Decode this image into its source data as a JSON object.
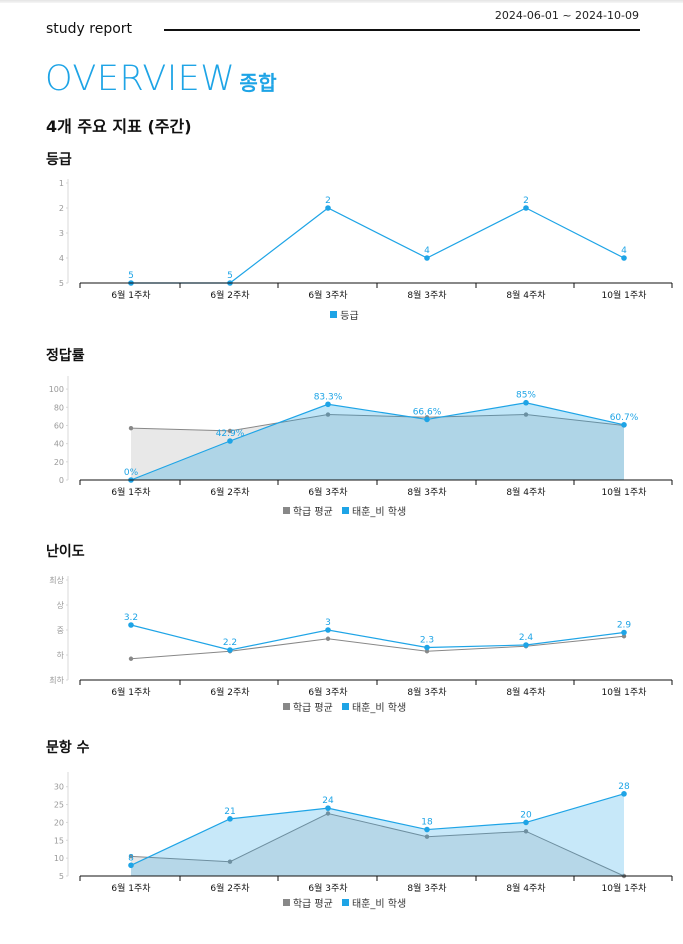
{
  "header": {
    "title": "study report",
    "date_range": "2024-06-01 ~ 2024-10-09"
  },
  "overview": {
    "title": "OVERVIEW",
    "subtitle": "종합"
  },
  "section_title": "4개 주요 지표 (주간)",
  "colors": {
    "accent": "#1ea4e6",
    "average": "#888888"
  },
  "legend_labels": {
    "average": "학급 평균",
    "student": "태훈_비 학생",
    "grade": "등급"
  },
  "chart_data": [
    {
      "title": "등급",
      "type": "line",
      "categories": [
        "6월 1주차",
        "6월 2주차",
        "6월 3주차",
        "8월 3주차",
        "8월 4주차",
        "10월 1주차"
      ],
      "y_ticks": [
        "1",
        "2",
        "3",
        "4",
        "5"
      ],
      "ylim": [
        1,
        5
      ],
      "y_inverted": true,
      "series": [
        {
          "name": "등급",
          "values": [
            5,
            5,
            2,
            4,
            2,
            4
          ],
          "labels": [
            "5",
            "5",
            "2",
            "4",
            "2",
            "4"
          ],
          "color": "#1ea4e6"
        }
      ]
    },
    {
      "title": "정답률",
      "type": "area",
      "categories": [
        "6월 1주차",
        "6월 2주차",
        "6월 3주차",
        "8월 3주차",
        "8월 4주차",
        "10월 1주차"
      ],
      "y_ticks": [
        "0",
        "20",
        "40",
        "60",
        "80",
        "100"
      ],
      "ylim": [
        0,
        110
      ],
      "series": [
        {
          "name": "학급 평균",
          "values": [
            57,
            54,
            72,
            69,
            72,
            60
          ],
          "color": "#888888"
        },
        {
          "name": "태훈_비 학생",
          "values": [
            0,
            42.9,
            83.3,
            66.6,
            85,
            60.7
          ],
          "labels": [
            "0%",
            "42.9%",
            "83.3%",
            "66.6%",
            "85%",
            "60.7%"
          ],
          "color": "#1ea4e6"
        }
      ]
    },
    {
      "title": "난이도",
      "type": "line",
      "categories": [
        "6월 1주차",
        "6월 2주차",
        "6월 3주차",
        "8월 3주차",
        "8월 4주차",
        "10월 1주차"
      ],
      "y_ticks": [
        "최하",
        "하",
        "중",
        "상",
        "최상"
      ],
      "ylim": [
        0,
        4
      ],
      "series": [
        {
          "name": "학급 평균",
          "values": [
            0.85,
            1.15,
            1.65,
            1.15,
            1.35,
            1.75
          ],
          "color": "#888888"
        },
        {
          "name": "태훈_비 학생",
          "values": [
            2.2,
            1.2,
            2.0,
            1.3,
            1.4,
            1.9
          ],
          "labels": [
            "3.2",
            "2.2",
            "3",
            "2.3",
            "2.4",
            "2.9"
          ],
          "color": "#1ea4e6"
        }
      ]
    },
    {
      "title": "문항 수",
      "type": "area",
      "categories": [
        "6월 1주차",
        "6월 2주차",
        "6월 3주차",
        "8월 3주차",
        "8월 4주차",
        "10월 1주차"
      ],
      "y_ticks": [
        "5",
        "10",
        "15",
        "20",
        "25",
        "30"
      ],
      "ylim": [
        5,
        33
      ],
      "series": [
        {
          "name": "학급 평균",
          "values": [
            10.5,
            9,
            22.5,
            16,
            17.5,
            5
          ],
          "color": "#888888"
        },
        {
          "name": "태훈_비 학생",
          "values": [
            8,
            21,
            24,
            18,
            20,
            28
          ],
          "labels": [
            "8",
            "21",
            "24",
            "18",
            "20",
            "28"
          ],
          "color": "#1ea4e6"
        }
      ]
    }
  ]
}
